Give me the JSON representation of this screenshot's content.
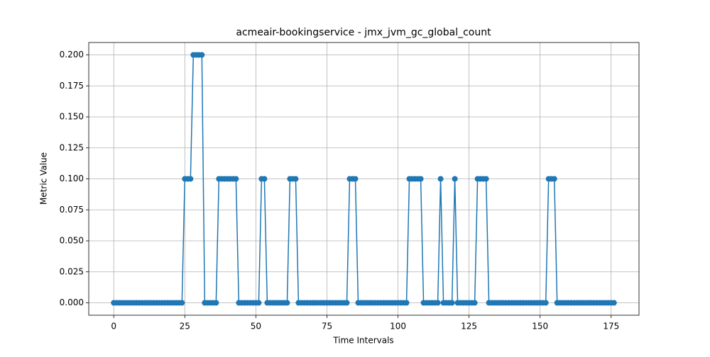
{
  "chart_data": {
    "type": "line",
    "title": "acmeair-bookingservice - jmx_jvm_gc_global_count",
    "xlabel": "Time Intervals",
    "ylabel": "Metric Value",
    "x": [
      0,
      1,
      2,
      3,
      4,
      5,
      6,
      7,
      8,
      9,
      10,
      11,
      12,
      13,
      14,
      15,
      16,
      17,
      18,
      19,
      20,
      21,
      22,
      23,
      24,
      25,
      26,
      27,
      28,
      29,
      30,
      31,
      32,
      33,
      34,
      35,
      36,
      37,
      38,
      39,
      40,
      41,
      42,
      43,
      44,
      45,
      46,
      47,
      48,
      49,
      50,
      51,
      52,
      53,
      54,
      55,
      56,
      57,
      58,
      59,
      60,
      61,
      62,
      63,
      64,
      65,
      66,
      67,
      68,
      69,
      70,
      71,
      72,
      73,
      74,
      75,
      76,
      77,
      78,
      79,
      80,
      81,
      82,
      83,
      84,
      85,
      86,
      87,
      88,
      89,
      90,
      91,
      92,
      93,
      94,
      95,
      96,
      97,
      98,
      99,
      100,
      101,
      102,
      103,
      104,
      105,
      106,
      107,
      108,
      109,
      110,
      111,
      112,
      113,
      114,
      115,
      116,
      117,
      118,
      119,
      120,
      121,
      122,
      123,
      124,
      125,
      126,
      127,
      128,
      129,
      130,
      131,
      132,
      133,
      134,
      135,
      136,
      137,
      138,
      139,
      140,
      141,
      142,
      143,
      144,
      145,
      146,
      147,
      148,
      149,
      150,
      151,
      152,
      153,
      154,
      155,
      156,
      157,
      158,
      159,
      160,
      161,
      162,
      163,
      164,
      165,
      166,
      167,
      168,
      169,
      170,
      171,
      172,
      173,
      174,
      175,
      176
    ],
    "series": [
      {
        "color": "#1f77b4",
        "values": [
          0,
          0,
          0,
          0,
          0,
          0,
          0,
          0,
          0,
          0,
          0,
          0,
          0,
          0,
          0,
          0,
          0,
          0,
          0,
          0,
          0,
          0,
          0,
          0,
          0,
          0.1,
          0.1,
          0.1,
          0.2,
          0.2,
          0.2,
          0.2,
          0,
          0,
          0,
          0,
          0,
          0.1,
          0.1,
          0.1,
          0.1,
          0.1,
          0.1,
          0.1,
          0,
          0,
          0,
          0,
          0,
          0,
          0,
          0,
          0.1,
          0.1,
          0,
          0,
          0,
          0,
          0,
          0,
          0,
          0,
          0.1,
          0.1,
          0.1,
          0,
          0,
          0,
          0,
          0,
          0,
          0,
          0,
          0,
          0,
          0,
          0,
          0,
          0,
          0,
          0,
          0,
          0,
          0.1,
          0.1,
          0.1,
          0,
          0,
          0,
          0,
          0,
          0,
          0,
          0,
          0,
          0,
          0,
          0,
          0,
          0,
          0,
          0,
          0,
          0,
          0.1,
          0.1,
          0.1,
          0.1,
          0.1,
          0,
          0,
          0,
          0,
          0,
          0,
          0.1,
          0,
          0,
          0,
          0,
          0.1,
          0,
          0,
          0,
          0,
          0,
          0,
          0,
          0.1,
          0.1,
          0.1,
          0.1,
          0,
          0,
          0,
          0,
          0,
          0,
          0,
          0,
          0,
          0,
          0,
          0,
          0,
          0,
          0,
          0,
          0,
          0,
          0,
          0,
          0,
          0.1,
          0.1,
          0.1,
          0,
          0,
          0,
          0,
          0,
          0,
          0,
          0,
          0,
          0,
          0,
          0,
          0,
          0,
          0,
          0,
          0,
          0,
          0,
          0,
          0
        ]
      }
    ],
    "xlim": [
      -8.8,
      184.8
    ],
    "xticks": [
      0,
      25,
      50,
      75,
      100,
      125,
      150,
      175
    ],
    "ylim": [
      -0.01,
      0.21
    ],
    "yticks": [
      {
        "value": 0,
        "label": "0.000"
      },
      {
        "value": 0.025,
        "label": "0.025"
      },
      {
        "value": 0.05,
        "label": "0.050"
      },
      {
        "value": 0.075,
        "label": "0.075"
      },
      {
        "value": 0.1,
        "label": "0.100"
      },
      {
        "value": 0.125,
        "label": "0.125"
      },
      {
        "value": 0.15,
        "label": "0.150"
      },
      {
        "value": 0.175,
        "label": "0.175"
      },
      {
        "value": 0.2,
        "label": "0.200"
      }
    ],
    "grid": true
  }
}
